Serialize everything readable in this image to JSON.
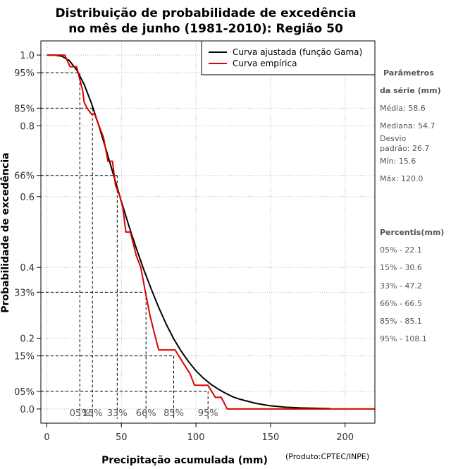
{
  "chart_data": {
    "type": "line",
    "title_line1": "Distribuição de probabilidade de excedência",
    "title_line2": "no mês de junho (1981-2010): Região 50",
    "xlabel": "Precipitação acumulada (mm)",
    "ylabel": "Probabilidade de excedência",
    "credit": "(Produto:CPTEC/INPE)",
    "xlim": [
      -4,
      220
    ],
    "ylim": [
      -0.04,
      1.04
    ],
    "x_ticks": [
      {
        "value": 0,
        "label": "0"
      },
      {
        "value": 50,
        "label": "50"
      },
      {
        "value": 100,
        "label": "100"
      },
      {
        "value": 150,
        "label": "150"
      },
      {
        "value": 200,
        "label": "200"
      }
    ],
    "y_ticks": [
      {
        "value": 1.0,
        "label": "1.0"
      },
      {
        "value": 0.95,
        "label": "95%"
      },
      {
        "value": 0.85,
        "label": "85%"
      },
      {
        "value": 0.8,
        "label": "0.8"
      },
      {
        "value": 0.66,
        "label": "66%"
      },
      {
        "value": 0.6,
        "label": "0.6"
      },
      {
        "value": 0.4,
        "label": "0.4"
      },
      {
        "value": 0.33,
        "label": "33%"
      },
      {
        "value": 0.2,
        "label": "0.2"
      },
      {
        "value": 0.15,
        "label": "15%"
      },
      {
        "value": 0.05,
        "label": "05%"
      },
      {
        "value": 0.0,
        "label": "0.0"
      }
    ],
    "grid": true,
    "legend": {
      "position": "top-right",
      "entries": [
        {
          "name": "Curva ajustada (função Gama)",
          "color": "#000000"
        },
        {
          "name": "Curva empírica",
          "color": "#dd0000"
        }
      ]
    },
    "series": [
      {
        "name": "Curva ajustada (função Gama)",
        "color": "#000000",
        "x": [
          0,
          5,
          10,
          15,
          20,
          25,
          30,
          35,
          40,
          45,
          50,
          55,
          60,
          65,
          70,
          75,
          80,
          85,
          90,
          95,
          100,
          105,
          110,
          115,
          120,
          125,
          130,
          140,
          150,
          160,
          170,
          180,
          190
        ],
        "y": [
          1.0,
          1.0,
          0.997,
          0.985,
          0.958,
          0.917,
          0.863,
          0.799,
          0.729,
          0.657,
          0.586,
          0.518,
          0.454,
          0.394,
          0.339,
          0.287,
          0.24,
          0.199,
          0.164,
          0.134,
          0.108,
          0.087,
          0.07,
          0.056,
          0.044,
          0.034,
          0.027,
          0.016,
          0.009,
          0.005,
          0.003,
          0.002,
          0.001
        ]
      },
      {
        "name": "Curva empírica",
        "color": "#dd0000",
        "x": [
          0,
          12,
          15.6,
          20,
          22,
          24,
          25,
          27,
          30,
          32,
          35,
          38,
          41,
          44,
          46,
          49,
          51,
          53,
          56,
          60,
          63,
          66,
          69,
          73,
          75,
          78,
          82,
          86,
          91,
          96,
          99,
          104,
          108,
          113,
          117,
          121,
          220
        ],
        "y": [
          1.0,
          1.0,
          0.967,
          0.967,
          0.933,
          0.9,
          0.867,
          0.85,
          0.833,
          0.833,
          0.8,
          0.767,
          0.7,
          0.7,
          0.633,
          0.6,
          0.567,
          0.5,
          0.5,
          0.433,
          0.4,
          0.333,
          0.267,
          0.2,
          0.167,
          0.167,
          0.167,
          0.167,
          0.133,
          0.1,
          0.067,
          0.067,
          0.067,
          0.033,
          0.033,
          0.0,
          0.0
        ]
      }
    ],
    "percentile_guides": [
      {
        "prob": 0.95,
        "x": 22.1,
        "label": "05%"
      },
      {
        "prob": 0.85,
        "x": 30.6,
        "label": "15%"
      },
      {
        "prob": 0.66,
        "x": 47.2,
        "label": "33%"
      },
      {
        "prob": 0.33,
        "x": 66.5,
        "label": "66%"
      },
      {
        "prob": 0.15,
        "x": 85.1,
        "label": "85%"
      },
      {
        "prob": 0.05,
        "x": 108.1,
        "label": "95%"
      }
    ],
    "side_panel": {
      "params_head1": "Parâmetros",
      "params_head2": "da série (mm)",
      "media": "Média: 58.6",
      "mediana": "Mediana: 54.7",
      "desvio1": "Desvio",
      "desvio2": "padrão: 26.7",
      "min": "Mín: 15.6",
      "max": "Máx: 120.0",
      "percentis_head": "Percentis(mm)",
      "percentis": [
        "05% - 22.1",
        "15% - 30.6",
        "33% - 47.2",
        "66% - 66.5",
        "85% - 85.1",
        "95% - 108.1"
      ]
    }
  }
}
